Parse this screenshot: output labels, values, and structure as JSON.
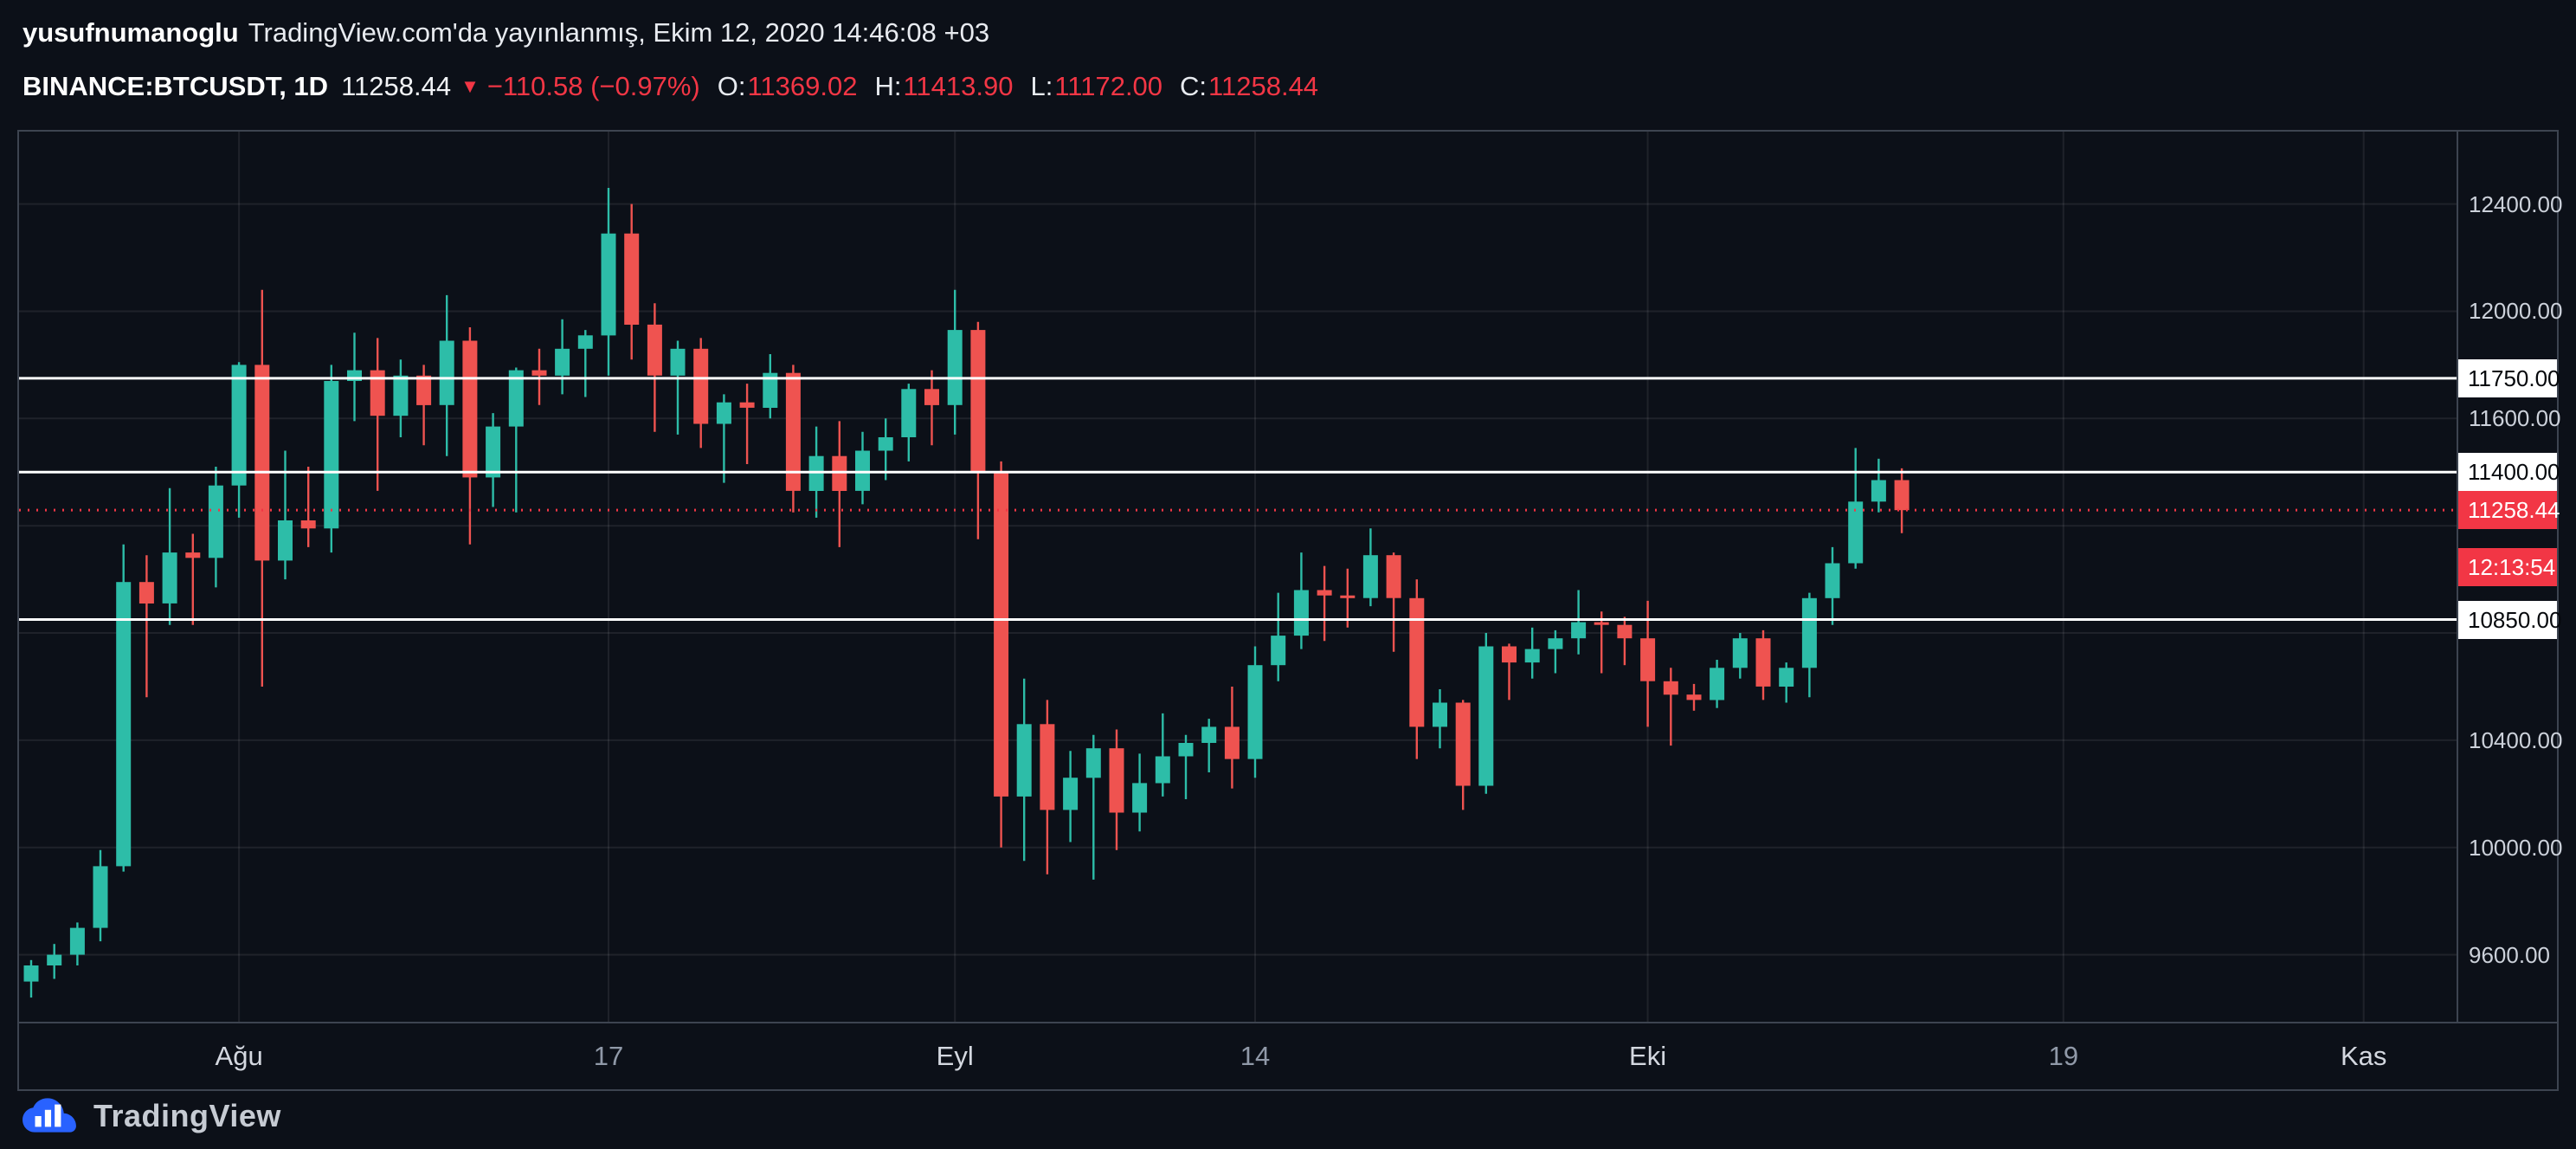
{
  "header": {
    "author": "yusufnumanoglu",
    "published": "TradingView.com'da yayınlanmış, Ekim 12, 2020 14:46:08 +03",
    "symbol": "BINANCE:BTCUSDT, 1D",
    "last_price": "11258.44",
    "change": "−110.58 (−0.97%)",
    "ohlc": [
      {
        "label": "O:",
        "value": "11369.02"
      },
      {
        "label": "H:",
        "value": "11413.90"
      },
      {
        "label": "L:",
        "value": "11172.00"
      },
      {
        "label": "C:",
        "value": "11258.44"
      }
    ]
  },
  "colors": {
    "up": "#2dbda8",
    "down": "#ef5350",
    "red": "#f23645",
    "white_line": "#ffffff"
  },
  "chart_data": {
    "type": "candlestick",
    "symbol": "BINANCE:BTCUSDT",
    "interval": "1D",
    "price_range": [
      9350,
      12670
    ],
    "grid_prices": [
      9600,
      10000,
      10400,
      10800,
      11200,
      11600,
      12000,
      12400
    ],
    "y_axis_plain": [
      {
        "price": 12400,
        "label": "12400.00"
      },
      {
        "price": 12000,
        "label": "12000.00"
      },
      {
        "price": 11600,
        "label": "11600.00"
      },
      {
        "price": 10400,
        "label": "10400.00"
      },
      {
        "price": 10000,
        "label": "10000.00"
      },
      {
        "price": 9600,
        "label": "9600.00"
      }
    ],
    "hlines": [
      {
        "price": 11750,
        "label": "11750.00"
      },
      {
        "price": 11400,
        "label": "11400.00"
      },
      {
        "price": 10850,
        "label": "10850.00"
      }
    ],
    "last_price": {
      "price": 11258.44,
      "label": "11258.44",
      "countdown": "12:13:54"
    },
    "time_labels": [
      {
        "label": "Ağu",
        "index": 9,
        "major": true
      },
      {
        "label": "17",
        "index": 25,
        "major": false
      },
      {
        "label": "Eyl",
        "index": 40,
        "major": true
      },
      {
        "label": "14",
        "index": 53,
        "major": false
      },
      {
        "label": "Eki",
        "index": 70,
        "major": true
      },
      {
        "label": "19",
        "index": 88,
        "major": false
      },
      {
        "label": "Kas",
        "index": 101,
        "major": true
      }
    ],
    "candles": [
      [
        9500,
        9580,
        9440,
        9560
      ],
      [
        9560,
        9640,
        9510,
        9600
      ],
      [
        9600,
        9720,
        9560,
        9700
      ],
      [
        9700,
        9990,
        9650,
        9930
      ],
      [
        9930,
        11130,
        9910,
        10990
      ],
      [
        10990,
        11090,
        10560,
        10910
      ],
      [
        10910,
        11340,
        10830,
        11100
      ],
      [
        11100,
        11170,
        10830,
        11080
      ],
      [
        11080,
        11420,
        10970,
        11350
      ],
      [
        11350,
        11810,
        11230,
        11800
      ],
      [
        11800,
        12080,
        10600,
        11070
      ],
      [
        11070,
        11480,
        11000,
        11220
      ],
      [
        11220,
        11420,
        11120,
        11190
      ],
      [
        11190,
        11800,
        11100,
        11740
      ],
      [
        11740,
        11920,
        11590,
        11780
      ],
      [
        11780,
        11900,
        11330,
        11610
      ],
      [
        11610,
        11820,
        11530,
        11760
      ],
      [
        11760,
        11800,
        11500,
        11650
      ],
      [
        11650,
        12060,
        11460,
        11890
      ],
      [
        11890,
        11940,
        11130,
        11380
      ],
      [
        11380,
        11620,
        11270,
        11570
      ],
      [
        11570,
        11790,
        11250,
        11780
      ],
      [
        11780,
        11860,
        11650,
        11760
      ],
      [
        11760,
        11970,
        11690,
        11860
      ],
      [
        11860,
        11930,
        11680,
        11910
      ],
      [
        11910,
        12460,
        11760,
        12290
      ],
      [
        12290,
        12400,
        11820,
        11950
      ],
      [
        11950,
        12030,
        11550,
        11760
      ],
      [
        11760,
        11890,
        11540,
        11860
      ],
      [
        11860,
        11900,
        11490,
        11580
      ],
      [
        11580,
        11690,
        11360,
        11660
      ],
      [
        11660,
        11730,
        11430,
        11640
      ],
      [
        11640,
        11840,
        11600,
        11770
      ],
      [
        11770,
        11800,
        11250,
        11330
      ],
      [
        11330,
        11570,
        11230,
        11460
      ],
      [
        11460,
        11590,
        11120,
        11330
      ],
      [
        11330,
        11550,
        11280,
        11480
      ],
      [
        11480,
        11600,
        11370,
        11530
      ],
      [
        11530,
        11730,
        11440,
        11710
      ],
      [
        11710,
        11780,
        11500,
        11650
      ],
      [
        11650,
        12080,
        11540,
        11930
      ],
      [
        11930,
        11960,
        11150,
        11400
      ],
      [
        11400,
        11440,
        10000,
        10190
      ],
      [
        10190,
        10630,
        9950,
        10460
      ],
      [
        10460,
        10550,
        9900,
        10140
      ],
      [
        10140,
        10360,
        10020,
        10260
      ],
      [
        10260,
        10420,
        9880,
        10370
      ],
      [
        10370,
        10440,
        9990,
        10130
      ],
      [
        10130,
        10350,
        10060,
        10240
      ],
      [
        10240,
        10500,
        10190,
        10340
      ],
      [
        10340,
        10420,
        10180,
        10390
      ],
      [
        10390,
        10480,
        10280,
        10450
      ],
      [
        10450,
        10600,
        10220,
        10330
      ],
      [
        10330,
        10750,
        10260,
        10680
      ],
      [
        10680,
        10950,
        10620,
        10790
      ],
      [
        10790,
        11100,
        10740,
        10960
      ],
      [
        10960,
        11050,
        10770,
        10940
      ],
      [
        10940,
        11040,
        10820,
        10930
      ],
      [
        10930,
        11190,
        10900,
        11090
      ],
      [
        11090,
        11100,
        10730,
        10930
      ],
      [
        10930,
        11000,
        10330,
        10450
      ],
      [
        10450,
        10590,
        10370,
        10540
      ],
      [
        10540,
        10550,
        10140,
        10230
      ],
      [
        10230,
        10800,
        10200,
        10750
      ],
      [
        10750,
        10760,
        10550,
        10690
      ],
      [
        10690,
        10820,
        10630,
        10740
      ],
      [
        10740,
        10810,
        10650,
        10780
      ],
      [
        10780,
        10960,
        10720,
        10840
      ],
      [
        10840,
        10880,
        10650,
        10830
      ],
      [
        10830,
        10860,
        10680,
        10780
      ],
      [
        10780,
        10920,
        10450,
        10620
      ],
      [
        10620,
        10670,
        10380,
        10570
      ],
      [
        10570,
        10610,
        10510,
        10550
      ],
      [
        10550,
        10700,
        10520,
        10670
      ],
      [
        10670,
        10800,
        10630,
        10780
      ],
      [
        10780,
        10810,
        10550,
        10600
      ],
      [
        10600,
        10690,
        10540,
        10670
      ],
      [
        10670,
        10950,
        10560,
        10930
      ],
      [
        10930,
        11120,
        10830,
        11060
      ],
      [
        11060,
        11490,
        11040,
        11290
      ],
      [
        11290,
        11450,
        11250,
        11370
      ],
      [
        11370,
        11414,
        11172,
        11258
      ]
    ]
  },
  "footer": {
    "brand": "TradingView"
  }
}
